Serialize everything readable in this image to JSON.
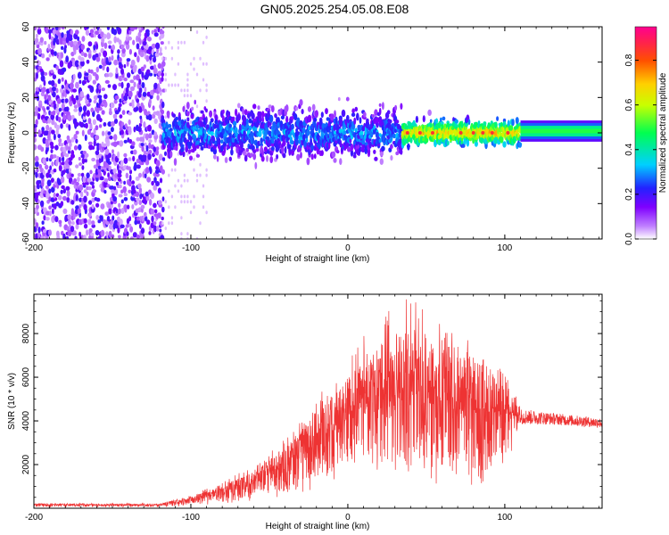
{
  "title": "GN05.2025.254.05.08.E08",
  "colors": {
    "snr_line": "#ee3333",
    "spectrogram_bg": "#ffffff"
  },
  "chart_data": [
    {
      "type": "heatmap",
      "xlabel": "Height of straight line (km)",
      "ylabel": "Frequency (Hz)",
      "xlim": [
        -200,
        162
      ],
      "ylim": [
        -60,
        60
      ],
      "x_ticks": [
        "-200",
        "-100",
        "0",
        "100"
      ],
      "x_tick_values": [
        -200,
        -100,
        0,
        100
      ],
      "y_ticks": [
        "-60",
        "-40",
        "-20",
        "0",
        "20",
        "40",
        "60"
      ],
      "y_tick_values": [
        -60,
        -40,
        -20,
        0,
        20,
        40,
        60
      ],
      "colorbar": {
        "label": "Normalized spectral amplitude",
        "range": [
          0,
          0.95
        ],
        "ticks": [
          "0.0",
          "0.2",
          "0.4",
          "0.6",
          "0.8"
        ],
        "tick_values": [
          0.0,
          0.2,
          0.4,
          0.6,
          0.8
        ],
        "colormap": "rainbow"
      },
      "regions": [
        {
          "x_range": [
            -200,
            -118
          ],
          "freq_range": [
            -60,
            60
          ],
          "amplitude": 0.05,
          "pattern": "noise"
        },
        {
          "x_range": [
            -118,
            35
          ],
          "freq_center": 0,
          "freq_halfwidth": 12,
          "amplitude": 0.25
        },
        {
          "x_range": [
            35,
            110
          ],
          "freq_center": 0,
          "freq_halfwidth": 6,
          "amplitude": 0.6
        },
        {
          "x_range": [
            110,
            162
          ],
          "freq_center": 1,
          "freq_halfwidth": 3,
          "amplitude": 0.45
        }
      ],
      "peaks_x": [
        38,
        46,
        54,
        72,
        80,
        86,
        92,
        102
      ],
      "peak_amplitude": 0.9
    },
    {
      "type": "line",
      "xlabel": "Height of straight line (km)",
      "ylabel": "SNR (10 * v/v)",
      "xlim": [
        -200,
        162
      ],
      "ylim": [
        0,
        9800
      ],
      "x_ticks": [
        "-200",
        "-100",
        "0",
        "100"
      ],
      "x_tick_values": [
        -200,
        -100,
        0,
        100
      ],
      "y_ticks": [
        "2000",
        "4000",
        "6000",
        "8000"
      ],
      "y_tick_values": [
        2000,
        4000,
        6000,
        8000
      ],
      "envelope_x": [
        -200,
        -120,
        -100,
        -80,
        -60,
        -40,
        -20,
        0,
        20,
        40,
        60,
        80,
        100,
        110,
        130,
        162
      ],
      "envelope_upper": [
        200,
        200,
        600,
        1200,
        2000,
        3200,
        5000,
        7000,
        8800,
        9700,
        8600,
        8000,
        5000,
        4400,
        4200,
        4000
      ],
      "envelope_lower": [
        50,
        50,
        100,
        200,
        300,
        500,
        800,
        1500,
        1500,
        1200,
        1000,
        800,
        1500,
        3600,
        3600,
        3500
      ],
      "envelope_mean": [
        150,
        150,
        350,
        650,
        1100,
        1800,
        2800,
        4000,
        4500,
        4800,
        4600,
        4300,
        4200,
        4200,
        4100,
        3900
      ]
    }
  ]
}
